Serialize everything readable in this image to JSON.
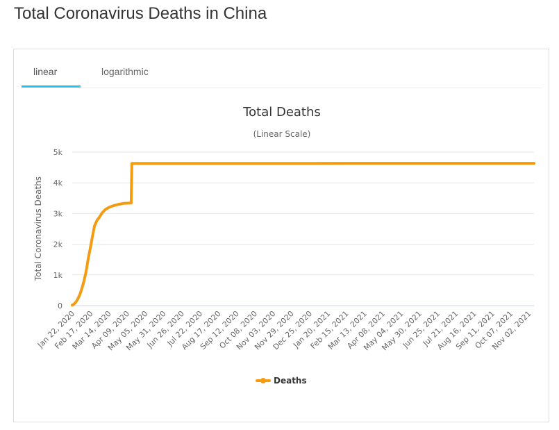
{
  "page": {
    "title": "Total Coronavirus Deaths in China"
  },
  "tabs": [
    {
      "label": "linear",
      "active": true
    },
    {
      "label": "logarithmic",
      "active": false
    }
  ],
  "colors": {
    "series": "#f39c12",
    "tab_active": "#2fc0e8",
    "grid": "#e6e6e6",
    "axis": "#ccd6eb"
  },
  "chart_data": {
    "type": "line",
    "title": "Total Deaths",
    "subtitle": "(Linear Scale)",
    "ylabel": "Total Coronavirus Deaths",
    "xlabel": "",
    "ylim": [
      0,
      5000
    ],
    "yticks": [
      0,
      1000,
      2000,
      3000,
      4000,
      5000
    ],
    "ytick_labels": [
      "0",
      "1k",
      "2k",
      "3k",
      "4k",
      "5k"
    ],
    "grid": true,
    "legend": "bottom-center",
    "x_start": "2020-01-22",
    "x_end": "2021-11-18",
    "xtick_labels": [
      "Jan 22, 2020",
      "Feb 17, 2020",
      "Mar 14, 2020",
      "Apr 09, 2020",
      "May 05, 2020",
      "May 31, 2020",
      "Jun 26, 2020",
      "Jul 22, 2020",
      "Aug 17, 2020",
      "Sep 12, 2020",
      "Oct 08, 2020",
      "Nov 03, 2020",
      "Nov 29, 2020",
      "Dec 25, 2020",
      "Jan 20, 2021",
      "Feb 15, 2021",
      "Mar 13, 2021",
      "Apr 08, 2021",
      "May 04, 2021",
      "May 30, 2021",
      "Jun 25, 2021",
      "Jul 21, 2021",
      "Aug 16, 2021",
      "Sep 11, 2021",
      "Oct 07, 2021",
      "Nov 02, 2021"
    ],
    "series": [
      {
        "name": "Deaths",
        "points": [
          [
            "2020-01-22",
            17
          ],
          [
            "2020-01-24",
            41
          ],
          [
            "2020-01-27",
            106
          ],
          [
            "2020-01-30",
            212
          ],
          [
            "2020-02-02",
            361
          ],
          [
            "2020-02-05",
            563
          ],
          [
            "2020-02-08",
            811
          ],
          [
            "2020-02-11",
            1113
          ],
          [
            "2020-02-14",
            1523
          ],
          [
            "2020-02-17",
            1868
          ],
          [
            "2020-02-20",
            2236
          ],
          [
            "2020-02-23",
            2592
          ],
          [
            "2020-02-27",
            2788
          ],
          [
            "2020-03-01",
            2870
          ],
          [
            "2020-03-05",
            3015
          ],
          [
            "2020-03-10",
            3136
          ],
          [
            "2020-03-16",
            3213
          ],
          [
            "2020-03-22",
            3261
          ],
          [
            "2020-03-29",
            3300
          ],
          [
            "2020-04-05",
            3331
          ],
          [
            "2020-04-16",
            3342
          ],
          [
            "2020-04-17",
            4632
          ],
          [
            "2020-06-01",
            4634
          ],
          [
            "2020-12-31",
            4634
          ],
          [
            "2021-06-30",
            4636
          ],
          [
            "2021-11-18",
            4636
          ]
        ]
      }
    ]
  }
}
